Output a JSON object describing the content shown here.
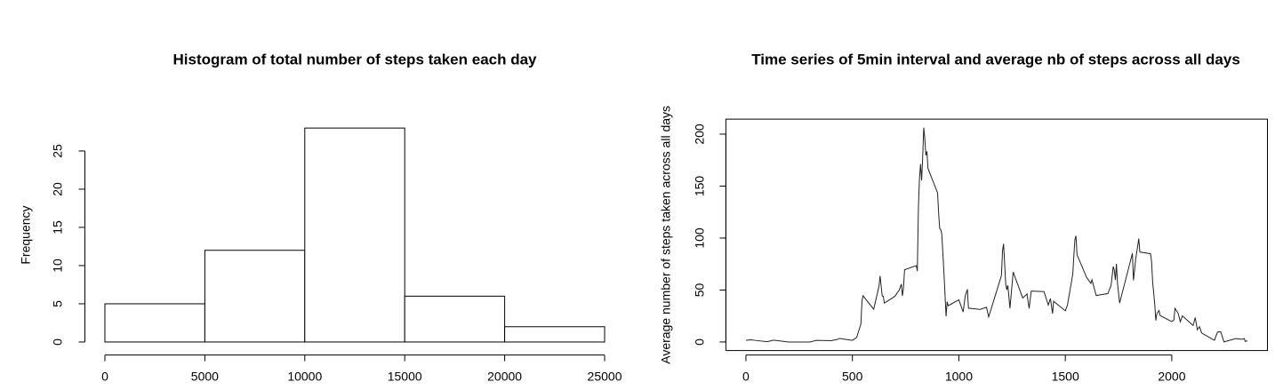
{
  "chart_data": [
    {
      "type": "histogram",
      "title": "Histogram of total number of steps taken each day",
      "ylabel": "Frequency",
      "bins": [
        0,
        5000,
        10000,
        15000,
        20000,
        25000
      ],
      "values": [
        5,
        12,
        28,
        6,
        2
      ],
      "color": "#ffffff",
      "edgecolor": "#000000",
      "xlim": [
        -1000,
        26000
      ],
      "ylim": [
        -1.12,
        29.12
      ],
      "xticks": [
        0,
        5000,
        10000,
        15000,
        20000,
        25000
      ],
      "yticks": [
        0,
        5,
        10,
        15,
        20,
        25
      ],
      "box": false
    },
    {
      "type": "line",
      "title": "Time series of 5min interval and average nb of steps across all days",
      "ylabel": "Average number of steps taken across all days",
      "x": [
        0,
        25,
        45,
        100,
        130,
        200,
        300,
        330,
        400,
        430,
        440,
        450,
        500,
        520,
        540,
        545,
        550,
        600,
        620,
        625,
        630,
        640,
        645,
        650,
        700,
        720,
        730,
        735,
        740,
        745,
        800,
        805,
        810,
        815,
        820,
        825,
        830,
        835,
        840,
        845,
        850,
        855,
        900,
        905,
        910,
        915,
        920,
        930,
        940,
        945,
        950,
        1000,
        1020,
        1030,
        1040,
        1045,
        1100,
        1130,
        1140,
        1200,
        1205,
        1210,
        1220,
        1225,
        1230,
        1240,
        1255,
        1300,
        1320,
        1330,
        1340,
        1400,
        1420,
        1430,
        1440,
        1445,
        1500,
        1510,
        1535,
        1540,
        1545,
        1550,
        1555,
        1600,
        1620,
        1625,
        1645,
        1700,
        1715,
        1725,
        1730,
        1735,
        1740,
        1745,
        1755,
        1815,
        1820,
        1830,
        1845,
        1850,
        1900,
        1905,
        1910,
        1920,
        1925,
        1930,
        1940,
        1945,
        2000,
        2010,
        2015,
        2030,
        2040,
        2050,
        2100,
        2110,
        2120,
        2130,
        2140,
        2200,
        2215,
        2230,
        2245,
        2300,
        2330,
        2340,
        2345,
        2355
      ],
      "values": [
        1.7,
        2.1,
        1.5,
        0.3,
        1.8,
        0,
        0,
        1.6,
        1.2,
        2.5,
        3.5,
        3.1,
        1.6,
        4.4,
        17.4,
        39.5,
        44.5,
        31.5,
        49.3,
        53.8,
        63.5,
        44.3,
        44,
        37.4,
        44,
        49.9,
        55.7,
        44.3,
        52.3,
        69.5,
        73.4,
        68.2,
        129.4,
        157.5,
        171.2,
        155.4,
        177.3,
        206.2,
        195.9,
        179.6,
        183.4,
        167,
        143.5,
        124,
        109.1,
        108.1,
        103.7,
        66.2,
        24.8,
        38.8,
        34.9,
        40.6,
        28.9,
        44.3,
        50.7,
        32.5,
        31.4,
        33.4,
        24.1,
        63.9,
        87.6,
        94.5,
        56,
        50.2,
        54.5,
        32.4,
        67.3,
        42.3,
        46.2,
        32.4,
        49,
        48.5,
        35.5,
        41.8,
        27.3,
        39.2,
        30,
        35.5,
        65.3,
        82.9,
        98.7,
        102.1,
        83.9,
        62.1,
        56.4,
        59.8,
        44.7,
        46.6,
        54.5,
        72.7,
        68.9,
        59.7,
        75.1,
        56.5,
        37.5,
        85.3,
        59.3,
        79,
        99.5,
        86.6,
        84.9,
        77.8,
        58,
        36.1,
        20.7,
        27.4,
        30.2,
        25.5,
        19.6,
        21.3,
        32.3,
        27.6,
        19.5,
        25.1,
        15.9,
        23.5,
        11.7,
        14.7,
        8.7,
        1.6,
        9.6,
        9.8,
        0.1,
        3.3,
        2.6,
        3.3,
        0.6,
        1.1
      ],
      "color": "#222222",
      "xlim": [
        -94.2,
        2449.2
      ],
      "ylim": [
        -8.25,
        214.42
      ],
      "xticks": [
        0,
        500,
        1000,
        1500,
        2000
      ],
      "yticks": [
        0,
        50,
        100,
        150,
        200
      ],
      "box": true
    }
  ]
}
